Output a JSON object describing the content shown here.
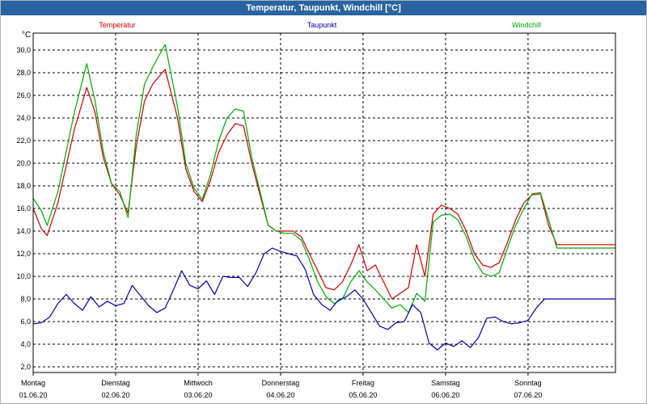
{
  "window": {
    "title": "Temperatur, Taupunkt, Windchill [°C]"
  },
  "chart_data": {
    "type": "line",
    "title": "Temperatur, Taupunkt, Windchill [°C]",
    "ylabel": "°C",
    "ylim": [
      1.5,
      31.5
    ],
    "yticks": [
      "2,0",
      "4,0",
      "6,0",
      "8,0",
      "10,0",
      "12,0",
      "14,0",
      "16,0",
      "18,0",
      "20,0",
      "22,0",
      "24,0",
      "26,0",
      "28,0",
      "30,0"
    ],
    "x_range_days": [
      0,
      7.06
    ],
    "x_categories": [
      {
        "day": "Montag",
        "date": "01.06.20"
      },
      {
        "day": "Dienstag",
        "date": "02.06.20"
      },
      {
        "day": "Mittwoch",
        "date": "03.06.20"
      },
      {
        "day": "Donnerstag",
        "date": "04.06.20"
      },
      {
        "day": "Freitag",
        "date": "05.06.20"
      },
      {
        "day": "Samstag",
        "date": "06.06.20"
      },
      {
        "day": "Sonntag",
        "date": "07.06.20"
      }
    ],
    "grid": true,
    "legend_position": "top",
    "series": [
      {
        "name": "Temperatur",
        "color": "#cc0000",
        "x": [
          0,
          0.1,
          0.17,
          0.3,
          0.5,
          0.65,
          0.75,
          0.85,
          0.95,
          1.05,
          1.15,
          1.25,
          1.35,
          1.45,
          1.6,
          1.75,
          1.85,
          1.95,
          2.05,
          2.15,
          2.25,
          2.35,
          2.45,
          2.55,
          2.65,
          2.75,
          2.85,
          2.95,
          3.05,
          3.15,
          3.25,
          3.35,
          3.45,
          3.55,
          3.65,
          3.75,
          3.85,
          3.95,
          4.05,
          4.15,
          4.25,
          4.35,
          4.45,
          4.55,
          4.65,
          4.75,
          4.85,
          4.95,
          5.05,
          5.15,
          5.25,
          5.35,
          5.45,
          5.55,
          5.65,
          5.75,
          5.85,
          5.95,
          6.05,
          6.15,
          6.25,
          6.35,
          6.45,
          6.55,
          6.65,
          6.75,
          6.85,
          6.95,
          7.06
        ],
        "y": [
          16.0,
          14.2,
          13.6,
          16.5,
          23.0,
          26.7,
          24.5,
          20.5,
          18.2,
          17.2,
          15.6,
          21.5,
          25.5,
          27.0,
          28.3,
          24.0,
          19.5,
          17.5,
          16.6,
          18.5,
          21.0,
          22.5,
          23.5,
          23.3,
          20.0,
          17.2,
          14.5,
          14.0,
          14.0,
          14.0,
          13.5,
          12.0,
          10.5,
          9.0,
          8.8,
          9.5,
          11.0,
          12.8,
          10.5,
          11.0,
          9.5,
          8.0,
          8.5,
          9.0,
          12.8,
          10.0,
          15.5,
          16.3,
          16.0,
          15.5,
          14.0,
          12.0,
          11.0,
          10.8,
          11.2,
          13.0,
          15.0,
          16.5,
          17.2,
          17.3,
          14.5,
          12.8,
          12.8,
          12.8,
          12.8,
          12.8,
          12.8,
          12.8,
          12.8
        ]
      },
      {
        "name": "Taupunkt",
        "color": "#0000aa",
        "x": [
          0,
          0.1,
          0.2,
          0.3,
          0.4,
          0.5,
          0.6,
          0.7,
          0.8,
          0.9,
          1.0,
          1.1,
          1.2,
          1.3,
          1.4,
          1.5,
          1.6,
          1.7,
          1.8,
          1.9,
          2.0,
          2.1,
          2.2,
          2.3,
          2.4,
          2.5,
          2.6,
          2.7,
          2.8,
          2.9,
          3.0,
          3.1,
          3.2,
          3.3,
          3.4,
          3.5,
          3.6,
          3.7,
          3.8,
          3.9,
          4.0,
          4.1,
          4.2,
          4.3,
          4.4,
          4.5,
          4.6,
          4.7,
          4.8,
          4.9,
          5.0,
          5.1,
          5.2,
          5.3,
          5.4,
          5.5,
          5.6,
          5.7,
          5.8,
          5.9,
          6.0,
          6.1,
          6.2,
          6.3,
          6.4,
          6.5,
          6.6,
          6.7,
          6.8,
          6.9,
          7.0,
          7.06
        ],
        "y": [
          5.8,
          5.9,
          6.4,
          7.6,
          8.4,
          7.6,
          7.0,
          8.2,
          7.3,
          7.8,
          7.4,
          7.6,
          9.2,
          8.3,
          7.4,
          6.8,
          7.2,
          8.8,
          10.5,
          9.2,
          8.9,
          9.6,
          8.4,
          10.0,
          9.9,
          9.9,
          9.1,
          10.3,
          12.0,
          12.5,
          12.2,
          12.0,
          11.8,
          10.6,
          8.4,
          7.5,
          7.0,
          7.9,
          8.2,
          8.8,
          8.0,
          6.8,
          5.6,
          5.3,
          5.9,
          6.0,
          7.5,
          6.8,
          4.1,
          3.5,
          4.1,
          3.8,
          4.3,
          3.7,
          4.6,
          6.3,
          6.4,
          6.0,
          5.8,
          5.9,
          6.1,
          7.2,
          8.0,
          8.0,
          8.0,
          8.0,
          8.0,
          8.0,
          8.0,
          8.0,
          8.0,
          8.0
        ]
      },
      {
        "name": "Windchill",
        "color": "#00aa00",
        "x": [
          0,
          0.1,
          0.17,
          0.3,
          0.5,
          0.65,
          0.75,
          0.85,
          0.95,
          1.05,
          1.15,
          1.25,
          1.35,
          1.45,
          1.6,
          1.75,
          1.85,
          1.95,
          2.05,
          2.15,
          2.25,
          2.35,
          2.45,
          2.55,
          2.65,
          2.75,
          2.85,
          2.95,
          3.05,
          3.15,
          3.25,
          3.35,
          3.45,
          3.55,
          3.65,
          3.75,
          3.85,
          3.95,
          4.05,
          4.15,
          4.25,
          4.35,
          4.45,
          4.55,
          4.65,
          4.75,
          4.85,
          4.95,
          5.05,
          5.15,
          5.25,
          5.35,
          5.45,
          5.55,
          5.65,
          5.75,
          5.85,
          5.95,
          6.05,
          6.15,
          6.25,
          6.35,
          6.45,
          6.55,
          6.65,
          6.75,
          6.85,
          6.95,
          7.06
        ],
        "y": [
          16.9,
          15.8,
          14.5,
          17.5,
          24.5,
          28.8,
          25.5,
          21.0,
          18.2,
          17.5,
          15.2,
          22.5,
          27.0,
          28.5,
          30.5,
          25.0,
          20.0,
          17.8,
          16.8,
          19.0,
          22.0,
          24.0,
          24.8,
          24.6,
          20.5,
          17.5,
          14.5,
          14.0,
          13.8,
          13.8,
          13.2,
          11.5,
          9.5,
          8.2,
          7.6,
          8.0,
          9.5,
          10.5,
          9.5,
          8.8,
          8.0,
          7.2,
          7.5,
          6.8,
          8.5,
          7.8,
          14.8,
          15.4,
          15.5,
          15.0,
          13.5,
          11.5,
          10.3,
          10.0,
          10.3,
          12.5,
          14.5,
          16.0,
          17.3,
          17.4,
          15.0,
          12.5,
          12.5,
          12.5,
          12.5,
          12.5,
          12.5,
          12.5,
          12.5
        ]
      }
    ]
  }
}
